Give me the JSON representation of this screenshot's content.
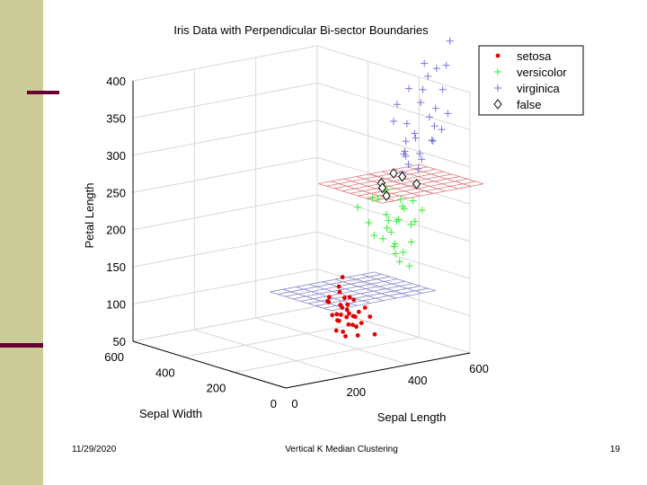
{
  "footer": {
    "date": "11/29/2020",
    "title": "Vertical K Median Clustering",
    "page": "19"
  },
  "colors": {
    "setosa": "#e00000",
    "versicolor": "#33ee33",
    "virginica": "#7777dd",
    "false": "#000000",
    "grid": "#d8d8d8",
    "upper_plane": "#dd7777",
    "lower_plane": "#8888cc"
  },
  "chart_data": {
    "type": "scatter3d",
    "title": "Iris Data with Perpendicular Bi-sector Boundaries",
    "xlabel": "Sepal Length",
    "ylabel": "Sepal Width",
    "zlabel": "Petal Length",
    "xlim": [
      0,
      600
    ],
    "ylim": [
      0,
      600
    ],
    "zlim": [
      50,
      400
    ],
    "x_ticks": [
      "0",
      "200",
      "400",
      "600"
    ],
    "y_ticks": [
      "0",
      "200",
      "400",
      "600"
    ],
    "z_ticks": [
      "50",
      "100",
      "150",
      "200",
      "250",
      "300",
      "350",
      "400"
    ],
    "legend": [
      "setosa",
      "versicolor",
      "virginica",
      "false"
    ],
    "legend_position": "top-right",
    "planes": [
      {
        "name": "lower bisector",
        "z": 95
      },
      {
        "name": "upper bisector",
        "z": 250
      }
    ],
    "series": [
      {
        "name": "setosa",
        "marker": "dot",
        "points": [
          [
            440,
            330,
            80
          ],
          [
            450,
            340,
            70
          ],
          [
            460,
            345,
            68
          ],
          [
            470,
            350,
            75
          ],
          [
            480,
            340,
            72
          ],
          [
            490,
            350,
            80
          ],
          [
            500,
            360,
            85
          ],
          [
            510,
            350,
            70
          ],
          [
            520,
            360,
            90
          ],
          [
            500,
            340,
            60
          ],
          [
            460,
            330,
            55
          ],
          [
            470,
            320,
            65
          ],
          [
            450,
            360,
            75
          ],
          [
            480,
            330,
            78
          ],
          [
            430,
            350,
            95
          ],
          [
            440,
            360,
            100
          ],
          [
            500,
            330,
            72
          ],
          [
            520,
            340,
            76
          ],
          [
            540,
            340,
            80
          ],
          [
            410,
            330,
            100
          ],
          [
            460,
            340,
            90
          ],
          [
            480,
            370,
            110
          ],
          [
            500,
            380,
            120
          ],
          [
            490,
            360,
            95
          ],
          [
            470,
            345,
            85
          ],
          [
            520,
            350,
            55
          ],
          [
            540,
            320,
            70
          ],
          [
            430,
            320,
            60
          ],
          [
            460,
            320,
            50
          ],
          [
            500,
            320,
            48
          ],
          [
            520,
            330,
            62
          ],
          [
            580,
            350,
            40
          ],
          [
            470,
            355,
            105
          ],
          [
            490,
            340,
            98
          ]
        ]
      },
      {
        "name": "versicolor",
        "marker": "plus",
        "points": [
          [
            500,
            320,
            220
          ],
          [
            520,
            300,
            200
          ],
          [
            550,
            300,
            230
          ],
          [
            560,
            280,
            210
          ],
          [
            580,
            300,
            240
          ],
          [
            600,
            280,
            200
          ],
          [
            610,
            270,
            215
          ],
          [
            590,
            260,
            230
          ],
          [
            570,
            290,
            190
          ],
          [
            540,
            270,
            180
          ],
          [
            560,
            250,
            170
          ],
          [
            590,
            250,
            160
          ],
          [
            620,
            240,
            200
          ],
          [
            600,
            230,
            175
          ],
          [
            580,
            310,
            235
          ],
          [
            610,
            300,
            195
          ],
          [
            630,
            260,
            225
          ],
          [
            550,
            260,
            205
          ],
          [
            520,
            280,
            185
          ],
          [
            580,
            270,
            170
          ],
          [
            620,
            290,
            215
          ],
          [
            600,
            310,
            180
          ],
          [
            570,
            240,
            150
          ],
          [
            640,
            280,
            190
          ],
          [
            660,
            260,
            210
          ],
          [
            540,
            310,
            230
          ],
          [
            590,
            280,
            155
          ],
          [
            610,
            250,
            140
          ]
        ]
      },
      {
        "name": "virginica",
        "marker": "plus",
        "points": [
          [
            600,
            300,
            330
          ],
          [
            620,
            310,
            350
          ],
          [
            650,
            300,
            370
          ],
          [
            680,
            290,
            350
          ],
          [
            700,
            300,
            400
          ],
          [
            720,
            310,
            380
          ],
          [
            740,
            300,
            390
          ],
          [
            700,
            280,
            330
          ],
          [
            660,
            290,
            310
          ],
          [
            640,
            300,
            300
          ],
          [
            620,
            280,
            290
          ],
          [
            700,
            260,
            320
          ],
          [
            720,
            280,
            340
          ],
          [
            760,
            300,
            360
          ],
          [
            780,
            310,
            390
          ],
          [
            800,
            320,
            420
          ],
          [
            720,
            330,
            360
          ],
          [
            680,
            310,
            300
          ],
          [
            650,
            320,
            280
          ],
          [
            640,
            290,
            270
          ],
          [
            660,
            270,
            285
          ],
          [
            700,
            270,
            300
          ],
          [
            740,
            280,
            310
          ],
          [
            760,
            280,
            330
          ],
          [
            680,
            300,
            260
          ],
          [
            620,
            290,
            260
          ],
          [
            700,
            310,
            270
          ],
          [
            640,
            300,
            280
          ],
          [
            720,
            290,
            295
          ],
          [
            660,
            320,
            320
          ]
        ]
      },
      {
        "name": "false",
        "marker": "diamond",
        "points": [
          [
            560,
            300,
            250
          ],
          [
            600,
            300,
            260
          ],
          [
            620,
            290,
            255
          ],
          [
            650,
            270,
            245
          ],
          [
            580,
            320,
            240
          ],
          [
            560,
            280,
            235
          ]
        ]
      }
    ]
  }
}
